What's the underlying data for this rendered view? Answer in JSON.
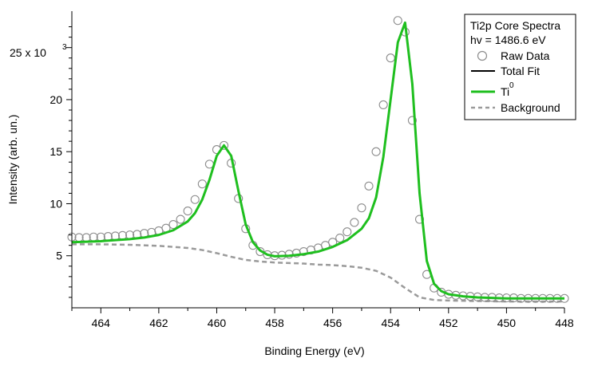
{
  "chart_data": {
    "type": "line",
    "title": "",
    "xlabel": "Binding Energy (eV)",
    "ylabel": "Intensity (arb. un.)",
    "x_reversed": true,
    "xlim": [
      465.0,
      448.0
    ],
    "ylim": [
      0.0,
      28.5
    ],
    "y_multiplier_label": "x 10",
    "y_multiplier_exponent": "3",
    "x_ticks": [
      464,
      462,
      460,
      458,
      456,
      454,
      452,
      450,
      448
    ],
    "y_ticks": [
      5,
      10,
      15,
      20,
      25
    ],
    "legend": {
      "position": "top-right",
      "header_lines": [
        "Ti2p Core Spectra",
        "hv = 1486.6 eV"
      ],
      "entries": [
        {
          "key": "raw",
          "label": "Raw Data",
          "style": "circle"
        },
        {
          "key": "total",
          "label": "Total Fit",
          "style": "line"
        },
        {
          "key": "ti0",
          "label": "Ti",
          "superscript": "0",
          "style": "line"
        },
        {
          "key": "background",
          "label": "Background",
          "style": "dashed"
        }
      ]
    },
    "colors": {
      "raw": "#8c8c8c",
      "total": "#000000",
      "ti0": "#1fbf1f",
      "background": "#9a9a9a"
    },
    "series": [
      {
        "key": "raw",
        "name": "Raw Data",
        "x": [
          465.0,
          464.75,
          464.5,
          464.25,
          464.0,
          463.75,
          463.5,
          463.25,
          463.0,
          462.75,
          462.5,
          462.25,
          462.0,
          461.75,
          461.5,
          461.25,
          461.0,
          460.75,
          460.5,
          460.25,
          460.0,
          459.75,
          459.5,
          459.25,
          459.0,
          458.75,
          458.5,
          458.25,
          458.0,
          457.75,
          457.5,
          457.25,
          457.0,
          456.75,
          456.5,
          456.25,
          456.0,
          455.75,
          455.5,
          455.25,
          455.0,
          454.75,
          454.5,
          454.25,
          454.0,
          453.75,
          453.5,
          453.25,
          453.0,
          452.75,
          452.5,
          452.25,
          452.0,
          451.75,
          451.5,
          451.25,
          451.0,
          450.75,
          450.5,
          450.25,
          450.0,
          449.75,
          449.5,
          449.25,
          449.0,
          448.75,
          448.5,
          448.25,
          448.0
        ],
        "y": [
          6.8,
          6.75,
          6.75,
          6.8,
          6.8,
          6.85,
          6.9,
          6.95,
          7.0,
          7.05,
          7.15,
          7.25,
          7.4,
          7.65,
          8.0,
          8.5,
          9.3,
          10.4,
          11.9,
          13.8,
          15.2,
          15.6,
          13.9,
          10.5,
          7.6,
          6.0,
          5.4,
          5.1,
          5.0,
          5.05,
          5.15,
          5.25,
          5.4,
          5.55,
          5.75,
          6.0,
          6.3,
          6.7,
          7.3,
          8.2,
          9.6,
          11.7,
          15.0,
          19.5,
          24.0,
          27.6,
          26.5,
          18.0,
          8.5,
          3.2,
          1.9,
          1.5,
          1.3,
          1.2,
          1.15,
          1.1,
          1.05,
          1.0,
          1.0,
          0.95,
          0.95,
          0.95,
          0.9,
          0.9,
          0.9,
          0.9,
          0.9,
          0.9,
          0.9
        ]
      },
      {
        "key": "total",
        "name": "Total Fit",
        "x": [
          465.0,
          464.5,
          464.0,
          463.5,
          463.0,
          462.5,
          462.0,
          461.5,
          461.0,
          460.75,
          460.5,
          460.25,
          460.0,
          459.75,
          459.5,
          459.25,
          459.0,
          458.75,
          458.5,
          458.25,
          458.0,
          457.5,
          457.0,
          456.5,
          456.0,
          455.5,
          455.0,
          454.75,
          454.5,
          454.25,
          454.0,
          453.75,
          453.5,
          453.25,
          453.0,
          452.75,
          452.5,
          452.25,
          452.0,
          451.5,
          451.0,
          450.5,
          450.0,
          449.5,
          449.0,
          448.5,
          448.0
        ],
        "y": [
          6.3,
          6.35,
          6.4,
          6.5,
          6.6,
          6.75,
          7.0,
          7.45,
          8.3,
          9.1,
          10.4,
          12.3,
          14.6,
          15.6,
          14.6,
          11.2,
          8.0,
          6.3,
          5.5,
          5.1,
          4.95,
          5.0,
          5.15,
          5.4,
          5.85,
          6.5,
          7.6,
          8.6,
          10.6,
          14.5,
          20.0,
          25.5,
          27.4,
          21.5,
          11.0,
          4.5,
          2.3,
          1.6,
          1.3,
          1.1,
          1.0,
          0.95,
          0.9,
          0.9,
          0.9,
          0.9,
          0.9
        ]
      },
      {
        "key": "ti0",
        "name": "Ti0",
        "x": [
          465.0,
          464.5,
          464.0,
          463.5,
          463.0,
          462.5,
          462.0,
          461.5,
          461.0,
          460.75,
          460.5,
          460.25,
          460.0,
          459.75,
          459.5,
          459.25,
          459.0,
          458.75,
          458.5,
          458.25,
          458.0,
          457.5,
          457.0,
          456.5,
          456.0,
          455.5,
          455.0,
          454.75,
          454.5,
          454.25,
          454.0,
          453.75,
          453.5,
          453.25,
          453.0,
          452.75,
          452.5,
          452.25,
          452.0,
          451.5,
          451.0,
          450.5,
          450.0,
          449.5,
          449.0,
          448.5,
          448.0
        ],
        "y": [
          6.3,
          6.35,
          6.4,
          6.5,
          6.6,
          6.75,
          7.0,
          7.45,
          8.3,
          9.1,
          10.4,
          12.3,
          14.6,
          15.6,
          14.6,
          11.2,
          8.0,
          6.3,
          5.5,
          5.1,
          4.95,
          5.0,
          5.15,
          5.4,
          5.85,
          6.5,
          7.6,
          8.6,
          10.6,
          14.5,
          20.0,
          25.5,
          27.4,
          21.5,
          11.0,
          4.5,
          2.3,
          1.6,
          1.3,
          1.1,
          1.0,
          0.95,
          0.9,
          0.9,
          0.9,
          0.9,
          0.9
        ]
      },
      {
        "key": "background",
        "name": "Background",
        "x": [
          465.0,
          464.0,
          463.0,
          462.0,
          461.0,
          460.5,
          460.0,
          459.5,
          459.0,
          458.5,
          458.0,
          457.5,
          457.0,
          456.5,
          456.0,
          455.5,
          455.0,
          454.5,
          454.0,
          453.5,
          453.0,
          452.5,
          452.0,
          451.0,
          450.0,
          449.0,
          448.0
        ],
        "y": [
          6.1,
          6.1,
          6.05,
          5.95,
          5.75,
          5.55,
          5.25,
          4.9,
          4.6,
          4.45,
          4.35,
          4.3,
          4.25,
          4.15,
          4.1,
          4.0,
          3.85,
          3.55,
          2.9,
          1.9,
          1.0,
          0.75,
          0.7,
          0.65,
          0.6,
          0.6,
          0.6
        ]
      }
    ]
  }
}
